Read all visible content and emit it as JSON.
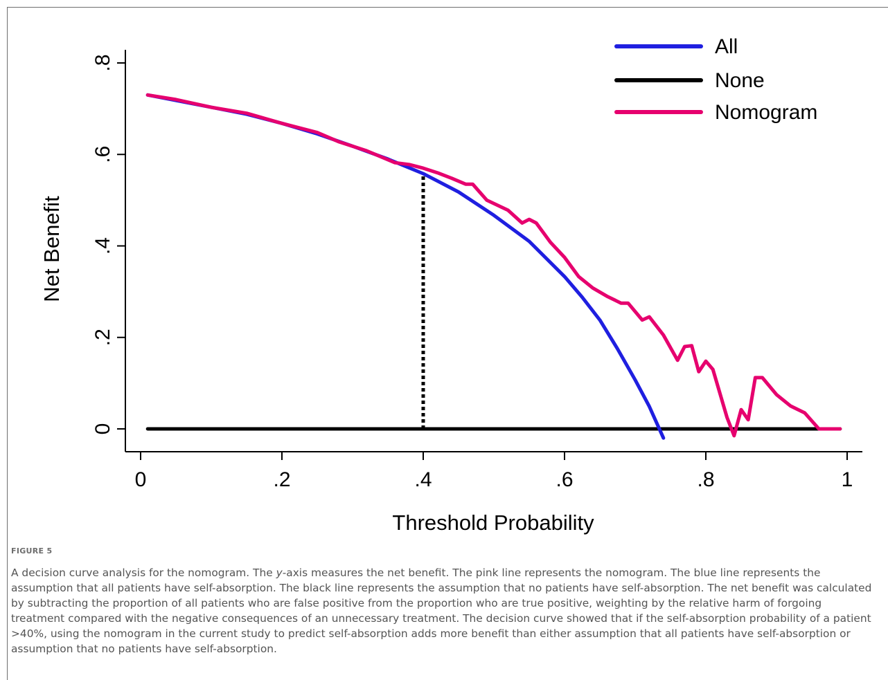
{
  "figure": {
    "label": "FIGURE 5",
    "caption_before_y": "A decision curve analysis for the nomogram. The ",
    "caption_y": "y",
    "caption_after_y": "-axis measures the net benefit. The pink line represents the nomogram. The blue line represents the assumption that all patients have self-absorption. The black line represents the assumption that no patients have self-absorption. The net benefit was calculated by subtracting the proportion of all patients who are false positive from the proportion who are true positive, weighting by the relative harm of forgoing treatment compared with the negative consequences of an unnecessary treatment. The decision curve showed that if the self-absorption probability of a patient >40%, using the nomogram in the current study to predict self-absorption adds more benefit than either assumption that all patients have self-absorption or assumption that no patients have self-absorption."
  },
  "chart_data": {
    "type": "line",
    "title": "",
    "xlabel": "Threshold Probability",
    "ylabel": "Net Benefit",
    "xlim": [
      0,
      1
    ],
    "ylim": [
      0,
      0.8
    ],
    "xticks": [
      0,
      0.2,
      0.4,
      0.6,
      0.8,
      1
    ],
    "xtick_labels": [
      "0",
      ".2",
      ".4",
      ".6",
      ".8",
      "1"
    ],
    "yticks": [
      0,
      0.2,
      0.4,
      0.6,
      0.8
    ],
    "ytick_labels": [
      "0",
      ".2",
      ".4",
      ".6",
      ".8"
    ],
    "grid": false,
    "legend_position": "top-right",
    "reference_line": {
      "x": 0.4,
      "y_from": 0,
      "y_to": 0.56,
      "style": "dotted",
      "color": "#000000"
    },
    "series": [
      {
        "name": "All",
        "color": "#1f1fe0",
        "x": [
          0.01,
          0.05,
          0.1,
          0.15,
          0.2,
          0.25,
          0.3,
          0.35,
          0.4,
          0.45,
          0.5,
          0.55,
          0.6,
          0.625,
          0.65,
          0.675,
          0.7,
          0.72,
          0.74
        ],
        "y": [
          0.73,
          0.718,
          0.703,
          0.688,
          0.668,
          0.645,
          0.618,
          0.59,
          0.558,
          0.518,
          0.467,
          0.41,
          0.333,
          0.288,
          0.238,
          0.175,
          0.107,
          0.049,
          -0.02
        ]
      },
      {
        "name": "None",
        "color": "#000000",
        "x": [
          0.01,
          0.99
        ],
        "y": [
          0,
          0
        ]
      },
      {
        "name": "Nomogram",
        "color": "#e6006e",
        "x": [
          0.01,
          0.05,
          0.1,
          0.15,
          0.2,
          0.25,
          0.28,
          0.32,
          0.36,
          0.38,
          0.4,
          0.42,
          0.44,
          0.46,
          0.47,
          0.49,
          0.52,
          0.54,
          0.55,
          0.56,
          0.58,
          0.6,
          0.62,
          0.64,
          0.66,
          0.68,
          0.69,
          0.71,
          0.72,
          0.74,
          0.76,
          0.77,
          0.78,
          0.79,
          0.8,
          0.81,
          0.83,
          0.84,
          0.85,
          0.86,
          0.87,
          0.88,
          0.9,
          0.92,
          0.94,
          0.96,
          0.99
        ],
        "y": [
          0.73,
          0.72,
          0.703,
          0.69,
          0.668,
          0.648,
          0.628,
          0.608,
          0.582,
          0.578,
          0.57,
          0.56,
          0.548,
          0.535,
          0.535,
          0.5,
          0.478,
          0.45,
          0.458,
          0.45,
          0.408,
          0.375,
          0.333,
          0.308,
          0.29,
          0.275,
          0.275,
          0.238,
          0.245,
          0.205,
          0.15,
          0.18,
          0.182,
          0.125,
          0.148,
          0.13,
          0.025,
          -0.015,
          0.042,
          0.02,
          0.112,
          0.112,
          0.075,
          0.05,
          0.035,
          0.0,
          0.0
        ]
      }
    ]
  }
}
